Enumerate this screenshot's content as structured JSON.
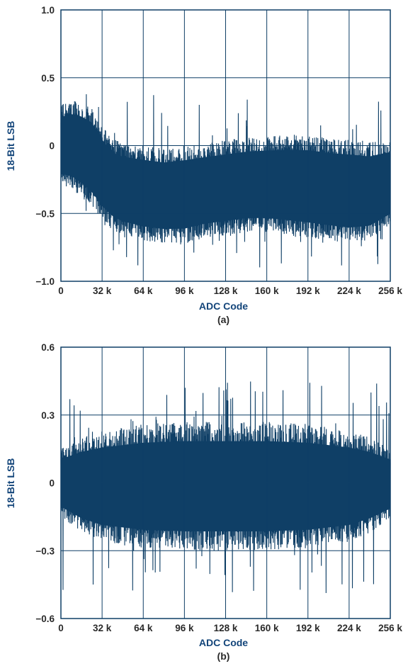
{
  "chart_data": [
    {
      "type": "line",
      "caption": "(a)",
      "xlabel": "ADC Code",
      "ylabel": "18-Bit LSB",
      "xlim": [
        0,
        262144
      ],
      "ylim": [
        -1.0,
        1.0
      ],
      "x_ticks": [
        0,
        32768,
        65536,
        98304,
        131072,
        163840,
        196608,
        229376,
        262144
      ],
      "x_tick_labels": [
        "0",
        "32 k",
        "64 k",
        "96 k",
        "128 k",
        "160 k",
        "192 k",
        "224 k",
        "256 k"
      ],
      "y_ticks": [
        1.0,
        0.5,
        0,
        -0.5,
        -1.0
      ],
      "y_tick_labels": [
        "1.0",
        "0.5",
        "0",
        "−0.5",
        "−1.0"
      ],
      "grid": true,
      "series": [
        {
          "color": "#0f3f66",
          "envelope": {
            "x": [
              0,
              8192,
              16384,
              24576,
              32768,
              40960,
              49152,
              65536,
              81920,
              98304,
              114688,
              131072,
              147456,
              163840,
              180224,
              196608,
              212992,
              229376,
              245760,
              262144
            ],
            "upper": [
              0.3,
              0.33,
              0.32,
              0.28,
              0.15,
              0.05,
              0.02,
              0.0,
              -0.02,
              0.0,
              0.02,
              0.04,
              0.06,
              0.07,
              0.08,
              0.08,
              0.06,
              0.05,
              0.03,
              0.05
            ],
            "lower": [
              -0.3,
              -0.32,
              -0.38,
              -0.45,
              -0.55,
              -0.62,
              -0.66,
              -0.7,
              -0.72,
              -0.72,
              -0.68,
              -0.66,
              -0.64,
              -0.64,
              -0.66,
              -0.68,
              -0.7,
              -0.72,
              -0.7,
              -0.6
            ],
            "upper_peak": 0.42,
            "lower_peak": -0.93
          }
        }
      ]
    },
    {
      "type": "line",
      "caption": "(b)",
      "xlabel": "ADC Code",
      "ylabel": "18-Bit LSB",
      "xlim": [
        0,
        262144
      ],
      "ylim": [
        -0.6,
        0.6
      ],
      "x_ticks": [
        0,
        32768,
        65536,
        98304,
        131072,
        163840,
        196608,
        229376,
        262144
      ],
      "x_tick_labels": [
        "0",
        "32 k",
        "64 k",
        "96 k",
        "128 k",
        "160 k",
        "192 k",
        "224 k",
        "256 k"
      ],
      "y_ticks": [
        0.6,
        0.3,
        0,
        -0.3,
        -0.6
      ],
      "y_tick_labels": [
        "0.6",
        "0.3",
        "0",
        "−0.3",
        "−0.6"
      ],
      "grid": true,
      "series": [
        {
          "color": "#0f3f66",
          "envelope": {
            "x": [
              0,
              16384,
              32768,
              65536,
              98304,
              131072,
              163840,
              196608,
              229376,
              245760,
              262144
            ],
            "upper": [
              0.15,
              0.2,
              0.23,
              0.26,
              0.27,
              0.27,
              0.27,
              0.26,
              0.23,
              0.2,
              0.15
            ],
            "lower": [
              -0.15,
              -0.22,
              -0.26,
              -0.29,
              -0.3,
              -0.3,
              -0.3,
              -0.29,
              -0.26,
              -0.22,
              -0.16
            ],
            "upper_peak": 0.48,
            "lower_peak": -0.52
          }
        }
      ]
    }
  ]
}
